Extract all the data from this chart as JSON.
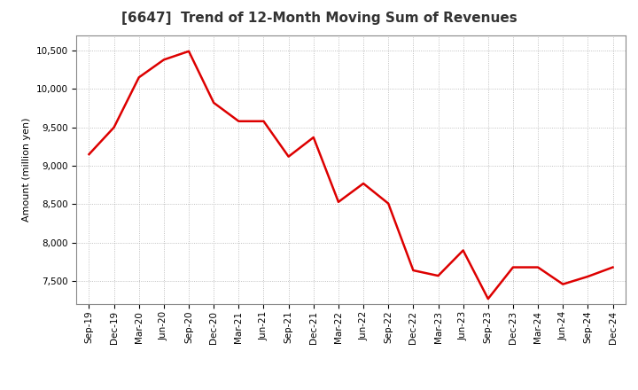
{
  "title": "[6647]  Trend of 12-Month Moving Sum of Revenues",
  "ylabel": "Amount (million yen)",
  "line_color": "#dd0000",
  "background_color": "#ffffff",
  "plot_bg_color": "#ffffff",
  "grid_color": "#b0b0b0",
  "x_labels": [
    "Sep-19",
    "Dec-19",
    "Mar-20",
    "Jun-20",
    "Sep-20",
    "Dec-20",
    "Mar-21",
    "Jun-21",
    "Sep-21",
    "Dec-21",
    "Mar-22",
    "Jun-22",
    "Sep-22",
    "Dec-22",
    "Mar-23",
    "Jun-23",
    "Sep-23",
    "Dec-23",
    "Mar-24",
    "Jun-24",
    "Sep-24",
    "Dec-24"
  ],
  "y_values": [
    9150,
    9500,
    10150,
    10380,
    10490,
    9820,
    9580,
    9580,
    9120,
    9370,
    8530,
    8770,
    8510,
    7640,
    7570,
    7900,
    7270,
    7680,
    7680,
    7460,
    7560,
    7680
  ],
  "ylim": [
    7200,
    10700
  ],
  "yticks": [
    7500,
    8000,
    8500,
    9000,
    9500,
    10000,
    10500
  ],
  "line_width": 1.8,
  "title_fontsize": 11,
  "axis_label_fontsize": 8,
  "tick_fontsize": 7.5
}
